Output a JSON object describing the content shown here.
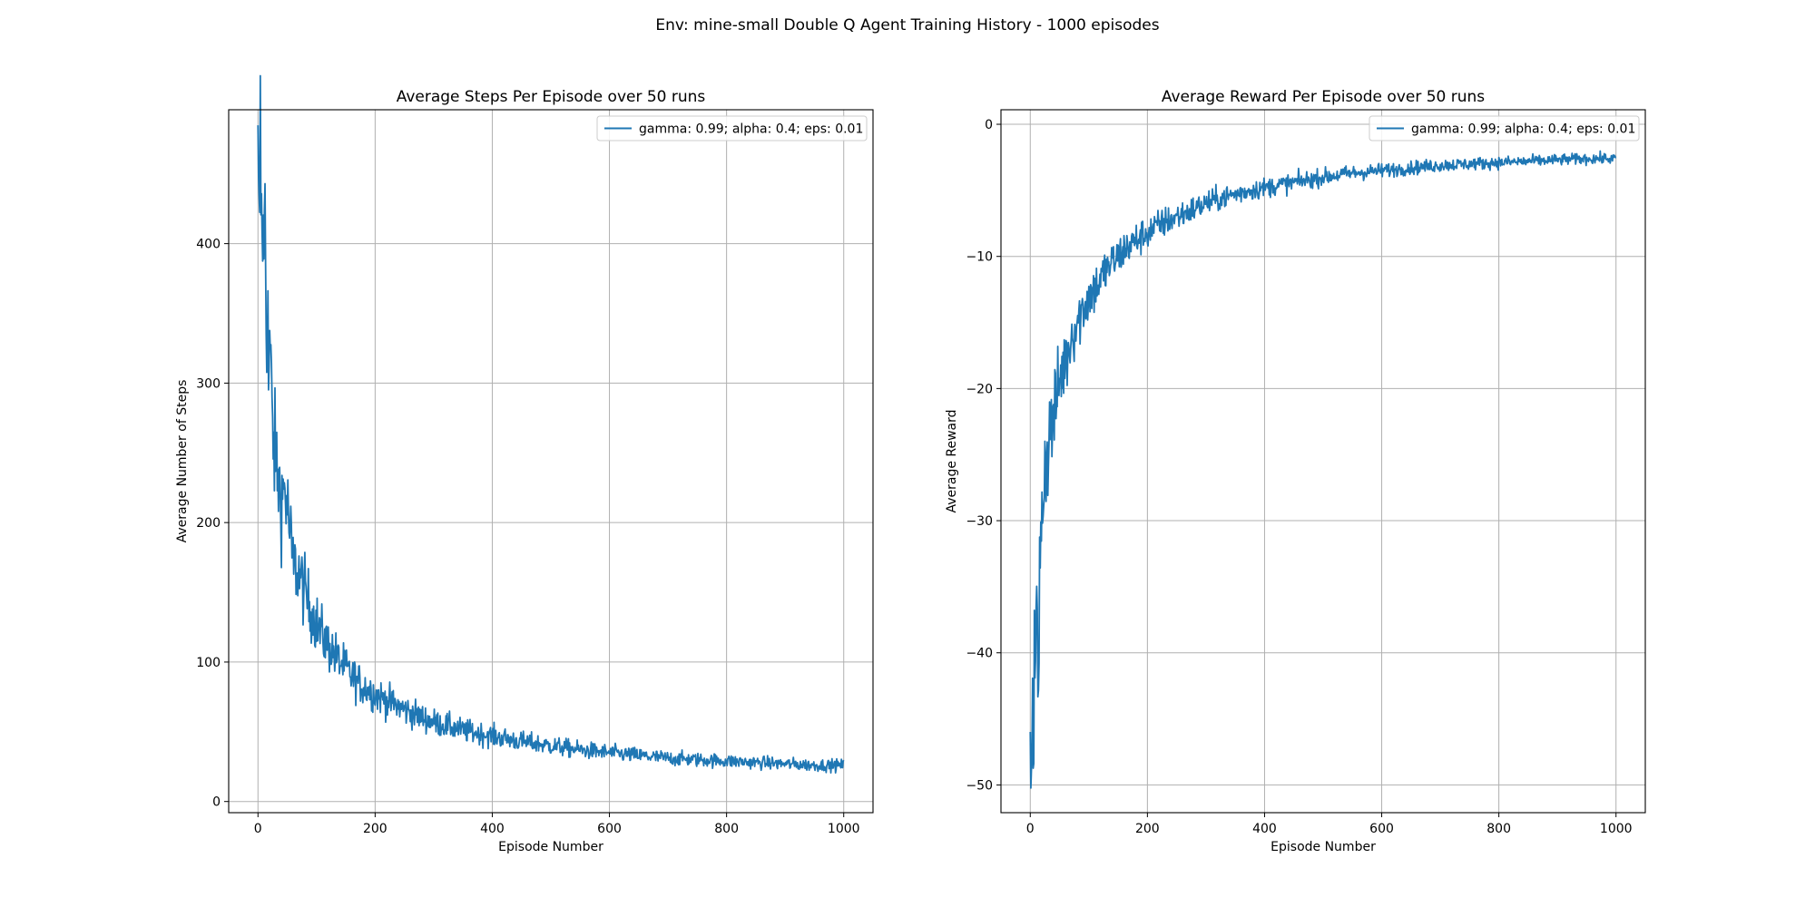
{
  "figure": {
    "suptitle": "Env: mine-small Double Q Agent Training History - 1000 episodes"
  },
  "colors": {
    "series": "#1f77b4",
    "grid": "#b0b0b0",
    "axes": "#000000",
    "legend_border": "#cccccc"
  },
  "chart_data": [
    {
      "type": "line",
      "title": "Average Steps Per Episode over 50 runs",
      "xlabel": "Episode Number",
      "ylabel": "Average Number of Steps",
      "xlim": [
        -50,
        1050
      ],
      "ylim": [
        -8,
        496
      ],
      "xticks": [
        0,
        200,
        400,
        600,
        800,
        1000
      ],
      "xtick_labels": [
        "0",
        "200",
        "400",
        "600",
        "800",
        "1000"
      ],
      "yticks": [
        0,
        100,
        200,
        300,
        400
      ],
      "ytick_labels": [
        "0",
        "100",
        "200",
        "300",
        "400"
      ],
      "grid": true,
      "legend_position": "top-right",
      "series": [
        {
          "name": "gamma: 0.99; alpha: 0.4; eps: 0.01",
          "x": [
            0,
            2,
            4,
            6,
            8,
            10,
            12,
            14,
            16,
            18,
            20,
            25,
            30,
            35,
            40,
            45,
            50,
            55,
            60,
            70,
            80,
            90,
            100,
            110,
            120,
            130,
            140,
            150,
            160,
            175,
            190,
            200,
            225,
            250,
            275,
            300,
            325,
            350,
            375,
            400,
            450,
            500,
            550,
            600,
            650,
            700,
            750,
            800,
            850,
            900,
            950,
            1000
          ],
          "y": [
            447,
            398,
            472,
            410,
            427,
            366,
            458,
            344,
            368,
            300,
            330,
            265,
            245,
            231,
            215,
            225,
            212,
            190,
            170,
            164,
            150,
            138,
            128,
            119,
            112,
            106,
            100,
            95,
            90,
            84,
            80,
            77,
            71,
            66,
            61,
            57,
            54,
            51,
            49,
            47,
            43,
            40,
            37,
            35,
            33,
            31,
            30,
            29,
            28,
            27,
            26,
            26
          ]
        }
      ]
    },
    {
      "type": "line",
      "title": "Average Reward Per Episode over 50 runs",
      "xlabel": "Episode Number",
      "ylabel": "Average Reward",
      "xlim": [
        -50,
        1050
      ],
      "ylim": [
        -52.1,
        1.1
      ],
      "xticks": [
        0,
        200,
        400,
        600,
        800,
        1000
      ],
      "xtick_labels": [
        "0",
        "200",
        "400",
        "600",
        "800",
        "1000"
      ],
      "yticks": [
        0,
        -10,
        -20,
        -30,
        -40,
        -50
      ],
      "ytick_labels": [
        "0",
        "−10",
        "−20",
        "−30",
        "−40",
        "−50"
      ],
      "grid": true,
      "legend_position": "top-right",
      "series": [
        {
          "name": "gamma: 0.99; alpha: 0.4; eps: 0.01",
          "x": [
            0,
            2,
            4,
            6,
            8,
            10,
            12,
            14,
            16,
            18,
            20,
            25,
            30,
            35,
            40,
            45,
            50,
            55,
            60,
            70,
            80,
            90,
            100,
            110,
            120,
            130,
            140,
            150,
            160,
            175,
            190,
            200,
            225,
            250,
            275,
            300,
            325,
            350,
            375,
            400,
            450,
            500,
            550,
            600,
            650,
            700,
            750,
            800,
            850,
            900,
            950,
            1000
          ],
          "y": [
            -48.5,
            -45.5,
            -42.5,
            -44.0,
            -38.5,
            -40.5,
            -36.5,
            -47.5,
            -35.0,
            -30.0,
            -28.5,
            -26.0,
            -24.5,
            -23.0,
            -22.0,
            -21.0,
            -19.5,
            -18.5,
            -18.0,
            -16.0,
            -15.0,
            -14.0,
            -13.0,
            -12.5,
            -11.8,
            -11.0,
            -10.5,
            -10.0,
            -9.5,
            -9.0,
            -8.5,
            -8.2,
            -7.5,
            -7.0,
            -6.5,
            -6.0,
            -5.6,
            -5.3,
            -5.0,
            -4.8,
            -4.4,
            -4.0,
            -3.7,
            -3.5,
            -3.3,
            -3.1,
            -3.0,
            -2.9,
            -2.8,
            -2.7,
            -2.6,
            -2.6
          ]
        }
      ]
    }
  ]
}
